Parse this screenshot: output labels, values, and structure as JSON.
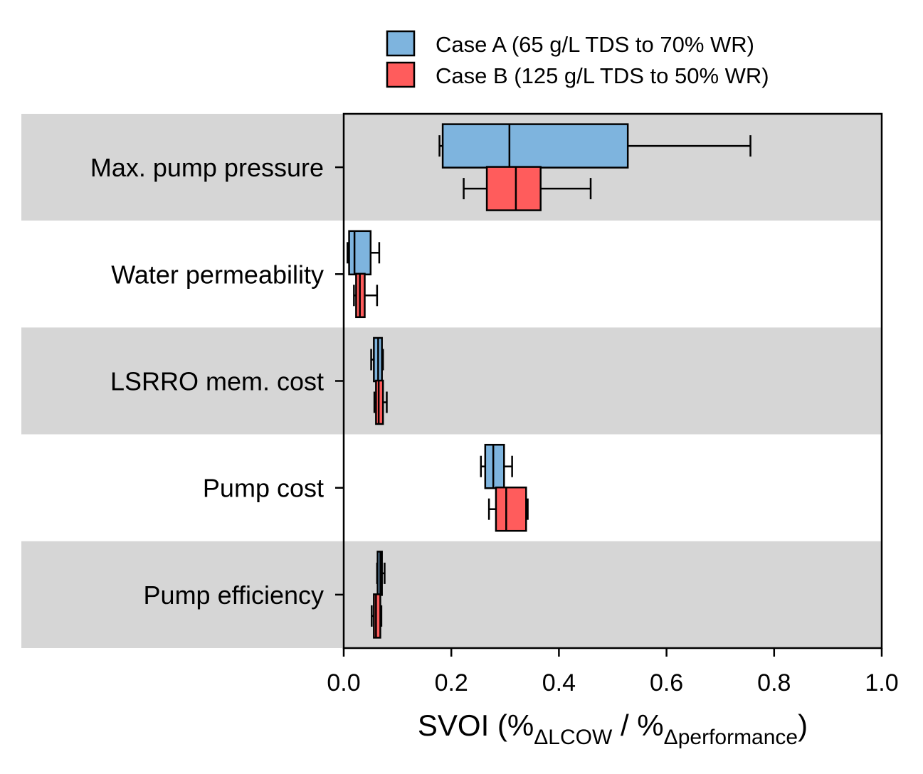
{
  "chart_data": {
    "type": "boxplot",
    "orientation": "horizontal",
    "categories": [
      "Max. pump pressure",
      "Water permeability",
      "LSRRO mem. cost",
      "Pump cost",
      "Pump efficiency"
    ],
    "series": [
      {
        "name": "Case A (65 g/L TDS to 70% WR)",
        "color": "#7eb4de",
        "boxes": [
          {
            "whislo": 0.178,
            "q1": 0.184,
            "med": 0.308,
            "q3": 0.528,
            "whishi": 0.756
          },
          {
            "whislo": 0.007,
            "q1": 0.01,
            "med": 0.02,
            "q3": 0.05,
            "whishi": 0.066
          },
          {
            "whislo": 0.051,
            "q1": 0.056,
            "med": 0.064,
            "q3": 0.071,
            "whishi": 0.073
          },
          {
            "whislo": 0.255,
            "q1": 0.263,
            "med": 0.278,
            "q3": 0.298,
            "whishi": 0.313
          },
          {
            "whislo": 0.062,
            "q1": 0.063,
            "med": 0.068,
            "q3": 0.071,
            "whishi": 0.076
          }
        ]
      },
      {
        "name": "Case B (125 g/L TDS to 50% WR)",
        "color": "#ff5c5c",
        "boxes": [
          {
            "whislo": 0.223,
            "q1": 0.266,
            "med": 0.32,
            "q3": 0.366,
            "whishi": 0.459
          },
          {
            "whislo": 0.019,
            "q1": 0.023,
            "med": 0.03,
            "q3": 0.039,
            "whishi": 0.062
          },
          {
            "whislo": 0.057,
            "q1": 0.06,
            "med": 0.065,
            "q3": 0.073,
            "whishi": 0.08
          },
          {
            "whislo": 0.27,
            "q1": 0.283,
            "med": 0.302,
            "q3": 0.339,
            "whishi": 0.342
          },
          {
            "whislo": 0.052,
            "q1": 0.056,
            "med": 0.06,
            "q3": 0.068,
            "whishi": 0.07
          }
        ]
      }
    ],
    "x_ticks": [
      "0.0",
      "0.2",
      "0.4",
      "0.6",
      "0.8",
      "1.0"
    ],
    "xlim": [
      0,
      1
    ],
    "xlabel": {
      "main": "SVOI (%",
      "sub1": "ΔLCOW",
      "mid": " / %",
      "sub2": "Δperformance",
      "end": ")"
    },
    "row_shading": [
      "#d6d6d6",
      "#ffffff",
      "#d6d6d6",
      "#ffffff",
      "#d6d6d6"
    ],
    "legend_position": "top-center"
  }
}
